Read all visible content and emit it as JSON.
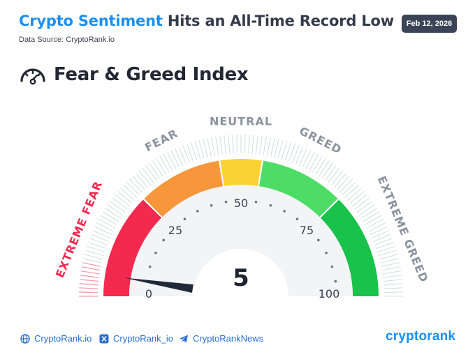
{
  "header": {
    "title_accent": "Crypto Sentiment",
    "title_rest": " Hits an All-Time Record Low",
    "source": "Data Source: CryptoRank.io",
    "date": "Feb 12, 2026"
  },
  "index": {
    "icon": "gauge-icon",
    "title": "Fear & Greed Index",
    "value": "5",
    "value_number": 5,
    "scale_min": 0,
    "scale_max": 100,
    "tick_labels": [
      "0",
      "25",
      "50",
      "75",
      "100"
    ],
    "zones": [
      {
        "label": "EXTREME FEAR",
        "from": 0,
        "to": 25,
        "color": "#f4294f"
      },
      {
        "label": "FEAR",
        "from": 25,
        "to": 45,
        "color": "#f7963a"
      },
      {
        "label": "NEUTRAL",
        "from": 45,
        "to": 55,
        "color": "#fbd233"
      },
      {
        "label": "GREED",
        "from": 55,
        "to": 75,
        "color": "#4ddd66"
      },
      {
        "label": "EXTREME GREED",
        "from": 75,
        "to": 100,
        "color": "#19c24a"
      }
    ]
  },
  "footer": {
    "links": [
      {
        "icon": "globe-icon",
        "label": "CryptoRank.io"
      },
      {
        "icon": "x-icon",
        "label": "CryptoRank_io"
      },
      {
        "icon": "telegram-icon",
        "label": "CryptoRankNews"
      }
    ],
    "brand": "cryptorank"
  }
}
